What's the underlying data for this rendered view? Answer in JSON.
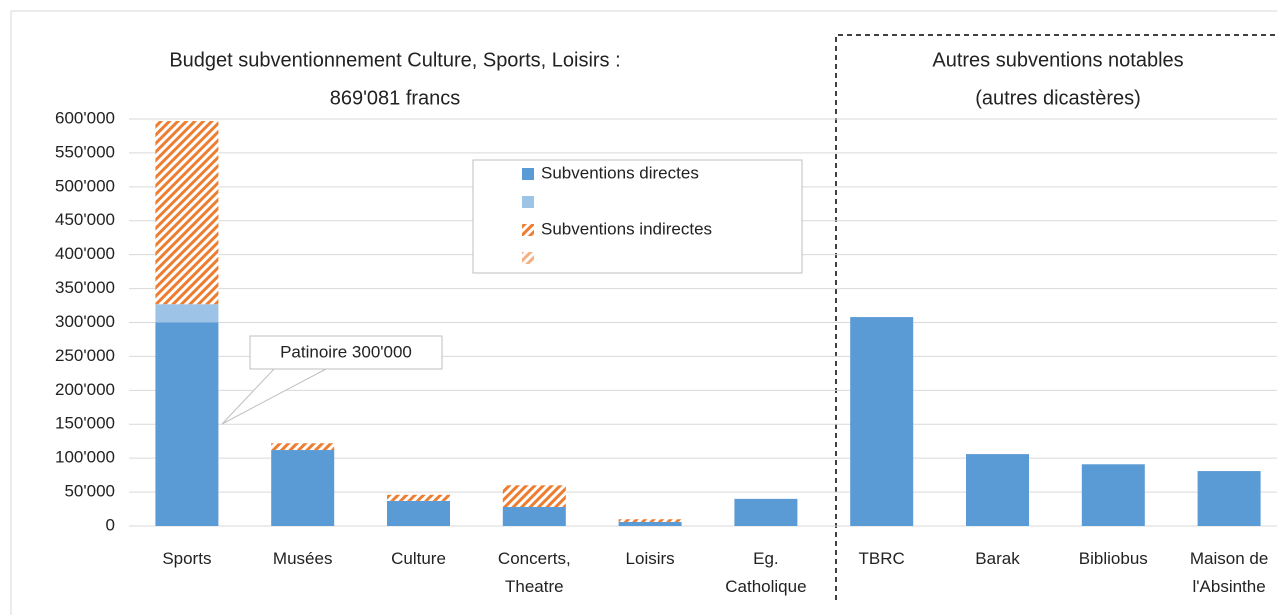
{
  "chart_data": {
    "type": "stacked_bar",
    "title": [
      "Budget subventionnement Culture, Sports, Loisirs :",
      "869'081 francs"
    ],
    "subtitle": [
      "Autres subventions notables",
      "(autres dicastères)"
    ],
    "categories": [
      "Sports",
      "Musées",
      "Culture",
      "Concerts, Theatre",
      "Loisirs",
      "Eg. Catholique",
      "TBRC",
      "Barak",
      "Bibliobus",
      "Maison de l'Absinthe"
    ],
    "series": [
      {
        "name": "Subventions directes",
        "color": "#5b9bd5",
        "values": [
          300000,
          112000,
          37000,
          28000,
          6000,
          40000,
          308000,
          106000,
          91000,
          81000
        ]
      },
      {
        "color": "#9dc3e6",
        "values": [
          27000,
          0,
          0,
          0,
          0,
          0,
          0,
          0,
          0,
          0
        ]
      },
      {
        "name": "Subventions indirectes",
        "color": "#ed7d31",
        "hatch": true,
        "values": [
          270000,
          10000,
          9000,
          32000,
          4000,
          0,
          0,
          0,
          0,
          0
        ]
      },
      {
        "color": "#f4b183",
        "hatch": true,
        "values": [
          0,
          0,
          0,
          0,
          0,
          0,
          0,
          0,
          0,
          0
        ]
      }
    ],
    "ylim": [
      0,
      600000
    ],
    "yticks": [
      0,
      {
        "value": 50000,
        "label": "50'000"
      },
      {
        "value": 100000,
        "label": "100'000"
      },
      {
        "value": 150000,
        "label": "150'000"
      },
      {
        "value": 200000,
        "label": "200'000"
      },
      {
        "value": 250000,
        "label": "250'000"
      },
      {
        "value": 300000,
        "label": "300'000"
      },
      {
        "value": 350000,
        "label": "350'000"
      },
      {
        "value": 400000,
        "label": "400'000"
      },
      {
        "value": 450000,
        "label": "450'000"
      },
      {
        "value": 500000,
        "label": "500'000"
      },
      {
        "value": 550000,
        "label": "550'000"
      },
      {
        "value": 600000,
        "label": "600'000"
      }
    ],
    "grid": true,
    "annotations": [
      {
        "text": "Patinoire 300'000"
      }
    ]
  }
}
